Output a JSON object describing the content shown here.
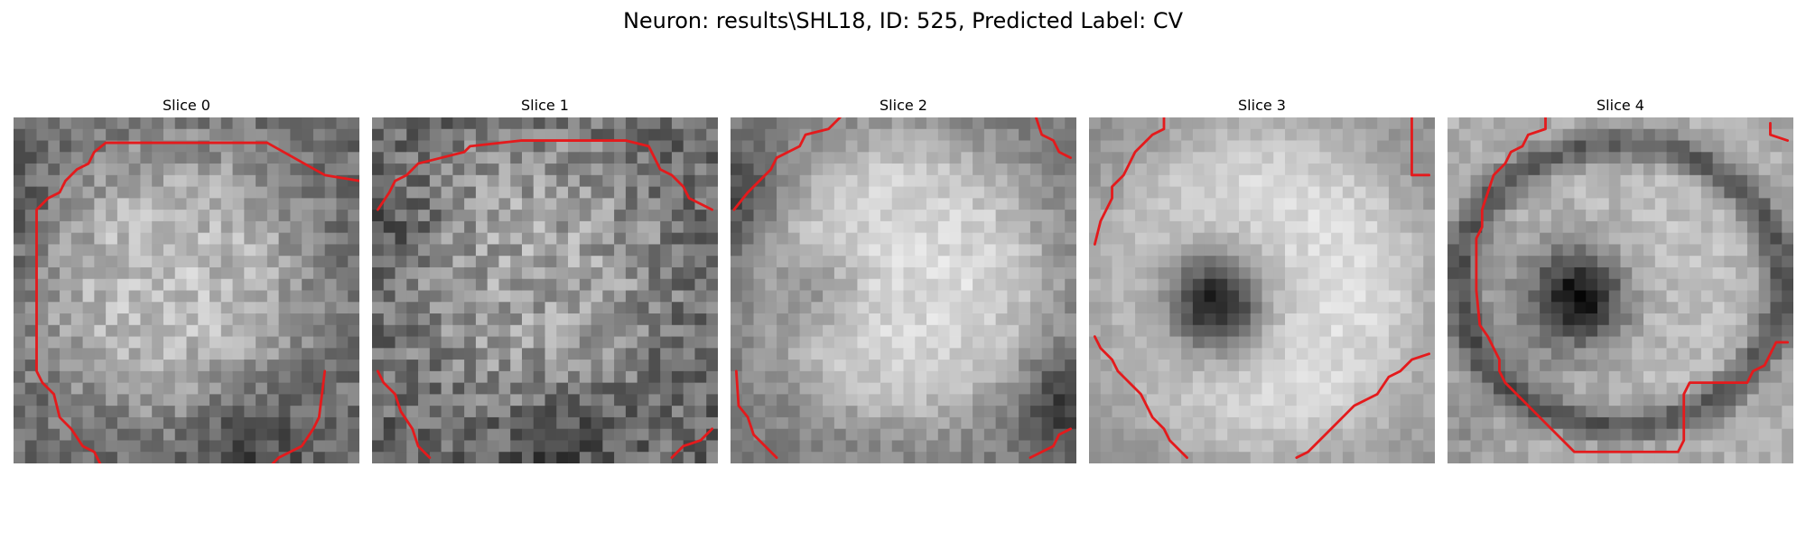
{
  "figure": {
    "title": "Neuron: results\\SHL18, ID: 525, Predicted Label: CV"
  },
  "slices": [
    {
      "title": "Slice 0",
      "contour_color": "#e41a1c"
    },
    {
      "title": "Slice 1",
      "contour_color": "#e41a1c"
    },
    {
      "title": "Slice 2",
      "contour_color": "#e41a1c"
    },
    {
      "title": "Slice 3",
      "contour_color": "#e41a1c"
    },
    {
      "title": "Slice 4",
      "contour_color": "#e41a1c"
    }
  ],
  "colormap": "gray"
}
